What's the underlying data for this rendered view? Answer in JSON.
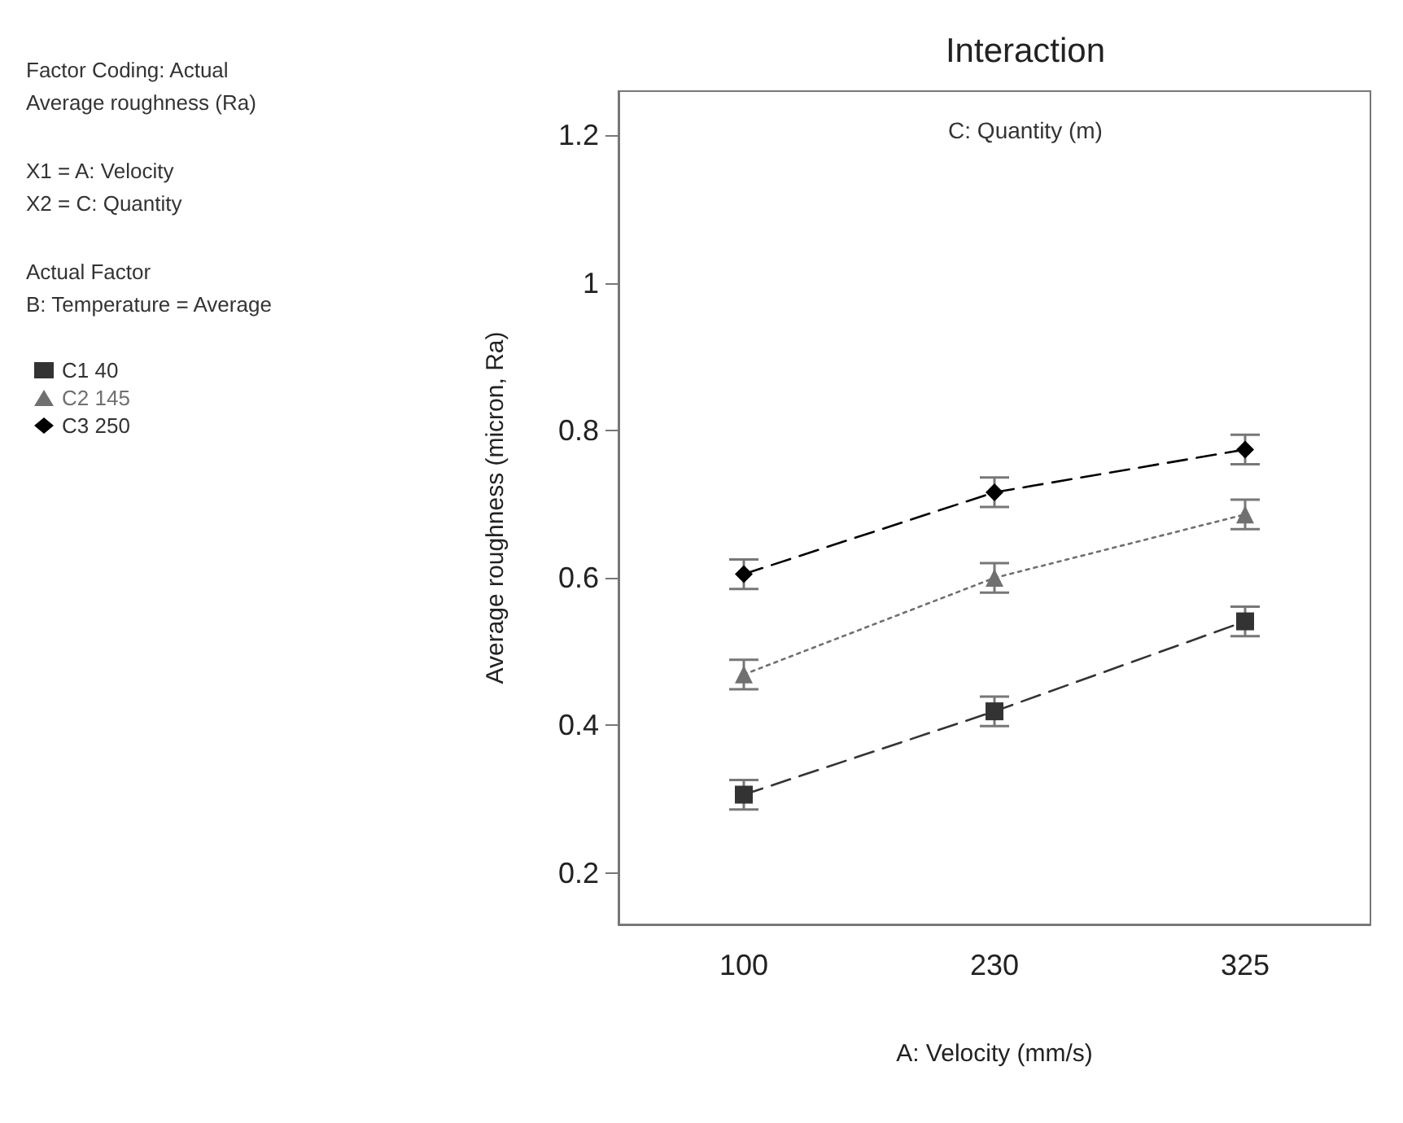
{
  "chart_data": {
    "type": "line",
    "title": "Interaction",
    "subtitle": "C: Quantity (m)",
    "xlabel": "A: Velocity (mm/s)",
    "ylabel": "Average roughness (micron, Ra)",
    "annotations": [
      "Factor Coding: Actual\nAverage roughness (Ra)",
      "X1 = A: Velocity\nX2 = C: Quantity",
      "Actual Factor\nB: Temperature = Average"
    ],
    "categories": [
      "100",
      "230",
      "325"
    ],
    "series": [
      {
        "name": "C1 40",
        "color": "#333333",
        "marker": "square",
        "line_style": "dashed",
        "values": [
          0.306,
          0.419,
          0.541
        ],
        "errors": [
          0.02,
          0.02,
          0.02
        ]
      },
      {
        "name": "C2 145",
        "color": "#707070",
        "marker": "triangle",
        "line_style": "dotted",
        "values": [
          0.469,
          0.6,
          0.686
        ],
        "errors": [
          0.02,
          0.02,
          0.02
        ]
      },
      {
        "name": "C3 250",
        "color": "#000000",
        "marker": "diamond",
        "line_style": "dashed",
        "values": [
          0.605,
          0.716,
          0.774
        ],
        "errors": [
          0.02,
          0.02,
          0.02
        ]
      }
    ],
    "ylim": [
      0.13,
      1.26
    ],
    "yticks": [
      0.2,
      0.4,
      0.6,
      0.8,
      1,
      1.2
    ],
    "grid": false,
    "legend": "left"
  }
}
